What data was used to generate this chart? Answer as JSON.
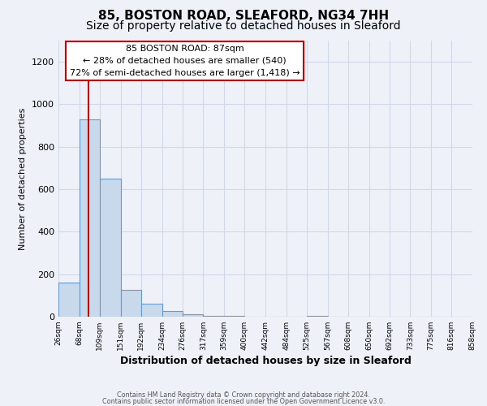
{
  "title": "85, BOSTON ROAD, SLEAFORD, NG34 7HH",
  "subtitle": "Size of property relative to detached houses in Sleaford",
  "xlabel": "Distribution of detached houses by size in Sleaford",
  "ylabel": "Number of detached properties",
  "bin_edges": [
    26,
    68,
    109,
    151,
    192,
    234,
    276,
    317,
    359,
    400,
    442,
    484,
    525,
    567,
    608,
    650,
    692,
    733,
    775,
    816,
    858
  ],
  "bar_heights": [
    160,
    930,
    650,
    125,
    60,
    28,
    10,
    5,
    5,
    0,
    0,
    0,
    5,
    0,
    0,
    0,
    0,
    0,
    0,
    0
  ],
  "bar_color": "#c9d9ec",
  "bar_edge_color": "#6699cc",
  "bar_linewidth": 0.8,
  "property_line_x": 87,
  "property_line_color": "#cc0000",
  "ylim": [
    0,
    1300
  ],
  "yticks": [
    0,
    200,
    400,
    600,
    800,
    1000,
    1200
  ],
  "annotation_title": "85 BOSTON ROAD: 87sqm",
  "annotation_line1": "← 28% of detached houses are smaller (540)",
  "annotation_line2": "72% of semi-detached houses are larger (1,418) →",
  "annotation_box_color": "#ffffff",
  "annotation_box_edge": "#cc0000",
  "footer_line1": "Contains HM Land Registry data © Crown copyright and database right 2024.",
  "footer_line2": "Contains public sector information licensed under the Open Government Licence v3.0.",
  "background_color": "#eef2f8",
  "plot_background": "#eef2f8",
  "grid_color": "#d0d8e8",
  "title_fontsize": 11,
  "subtitle_fontsize": 10
}
